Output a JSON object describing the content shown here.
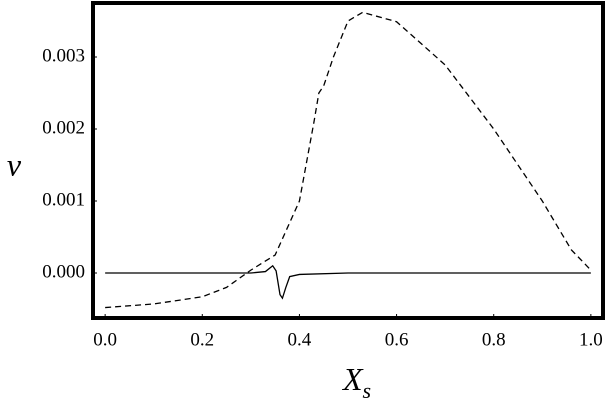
{
  "chart_data": {
    "type": "line",
    "xlabel": {
      "main": "X",
      "sub": "s"
    },
    "ylabel": "v",
    "xlim": [
      -0.025,
      1.025
    ],
    "ylim": [
      -0.000625,
      0.00375
    ],
    "xticks": [
      {
        "value": 0,
        "label": "0.0"
      },
      {
        "value": 0.2,
        "label": "0.2"
      },
      {
        "value": 0.4,
        "label": "0.4"
      },
      {
        "value": 0.6,
        "label": "0.6"
      },
      {
        "value": 0.8,
        "label": "0.8"
      },
      {
        "value": 1,
        "label": "1.0"
      }
    ],
    "yticks": [
      {
        "value": 0,
        "label": "0.000"
      },
      {
        "value": 0.001,
        "label": "0.001"
      },
      {
        "value": 0.002,
        "label": "0.002"
      },
      {
        "value": 0.003,
        "label": "0.003"
      }
    ],
    "series": [
      {
        "color": "#000000",
        "dashed": true,
        "x": [
          0,
          0.1,
          0.2,
          0.25,
          0.3,
          0.35,
          0.4,
          0.43,
          0.44,
          0.45,
          0.455,
          0.47,
          0.5,
          0.53,
          0.6,
          0.7,
          0.8,
          0.9,
          0.96,
          1.0
        ],
        "values": [
          -0.00048,
          -0.00043,
          -0.00033,
          -0.0002,
          4e-05,
          0.00025,
          0.001,
          0.0021,
          0.0025,
          0.0026,
          0.0027,
          0.003,
          0.0035,
          0.00362,
          0.00349,
          0.00289,
          0.002,
          0.001,
          0.00032,
          4e-05
        ]
      },
      {
        "color": "#000000",
        "dashed": false,
        "x": [
          0,
          0.3,
          0.33,
          0.345,
          0.352,
          0.36,
          0.365,
          0.372,
          0.38,
          0.4,
          0.5,
          1.0
        ],
        "values": [
          0,
          0,
          2e-05,
          0.0001,
          3e-05,
          -0.0003,
          -0.00035,
          -0.0002,
          -5e-05,
          -2e-05,
          0,
          0
        ]
      }
    ]
  }
}
